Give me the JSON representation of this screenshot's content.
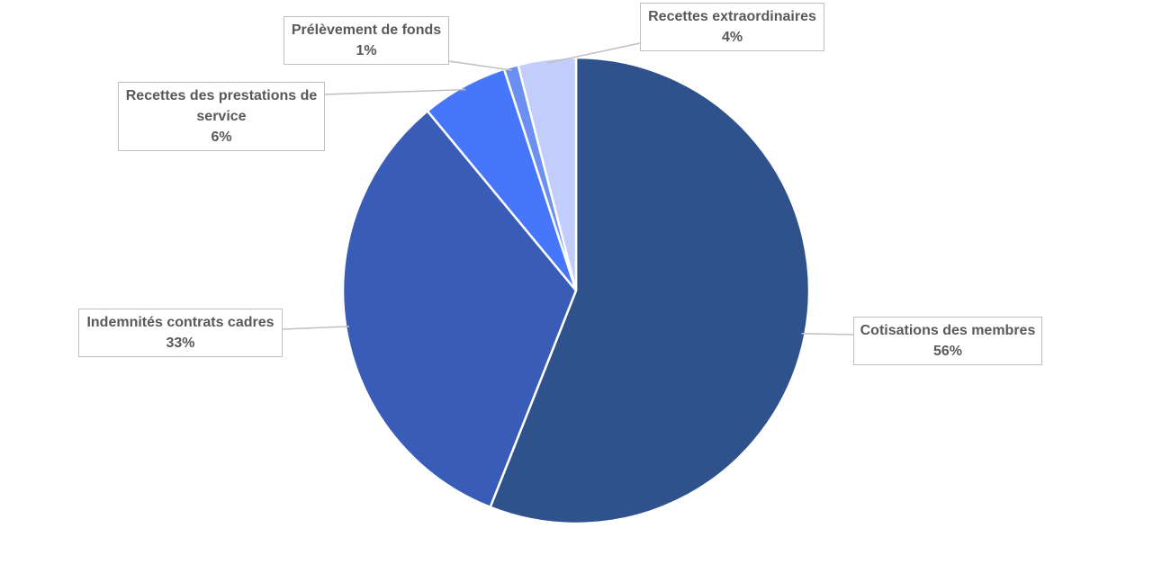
{
  "chart_data": {
    "type": "pie",
    "categories": [
      "Cotisations des membres",
      "Indemnités contrats cadres",
      "Recettes des prestations de service",
      "Prélèvement de fonds",
      "Recettes extraordinaires"
    ],
    "values": [
      56,
      33,
      6,
      1,
      4
    ],
    "value_labels": [
      "56%",
      "33%",
      "6%",
      "1%",
      "4%"
    ],
    "colors": [
      "#2f518c",
      "#395db7",
      "#4677fb",
      "#6c8ff2",
      "#c3cdfc"
    ]
  }
}
